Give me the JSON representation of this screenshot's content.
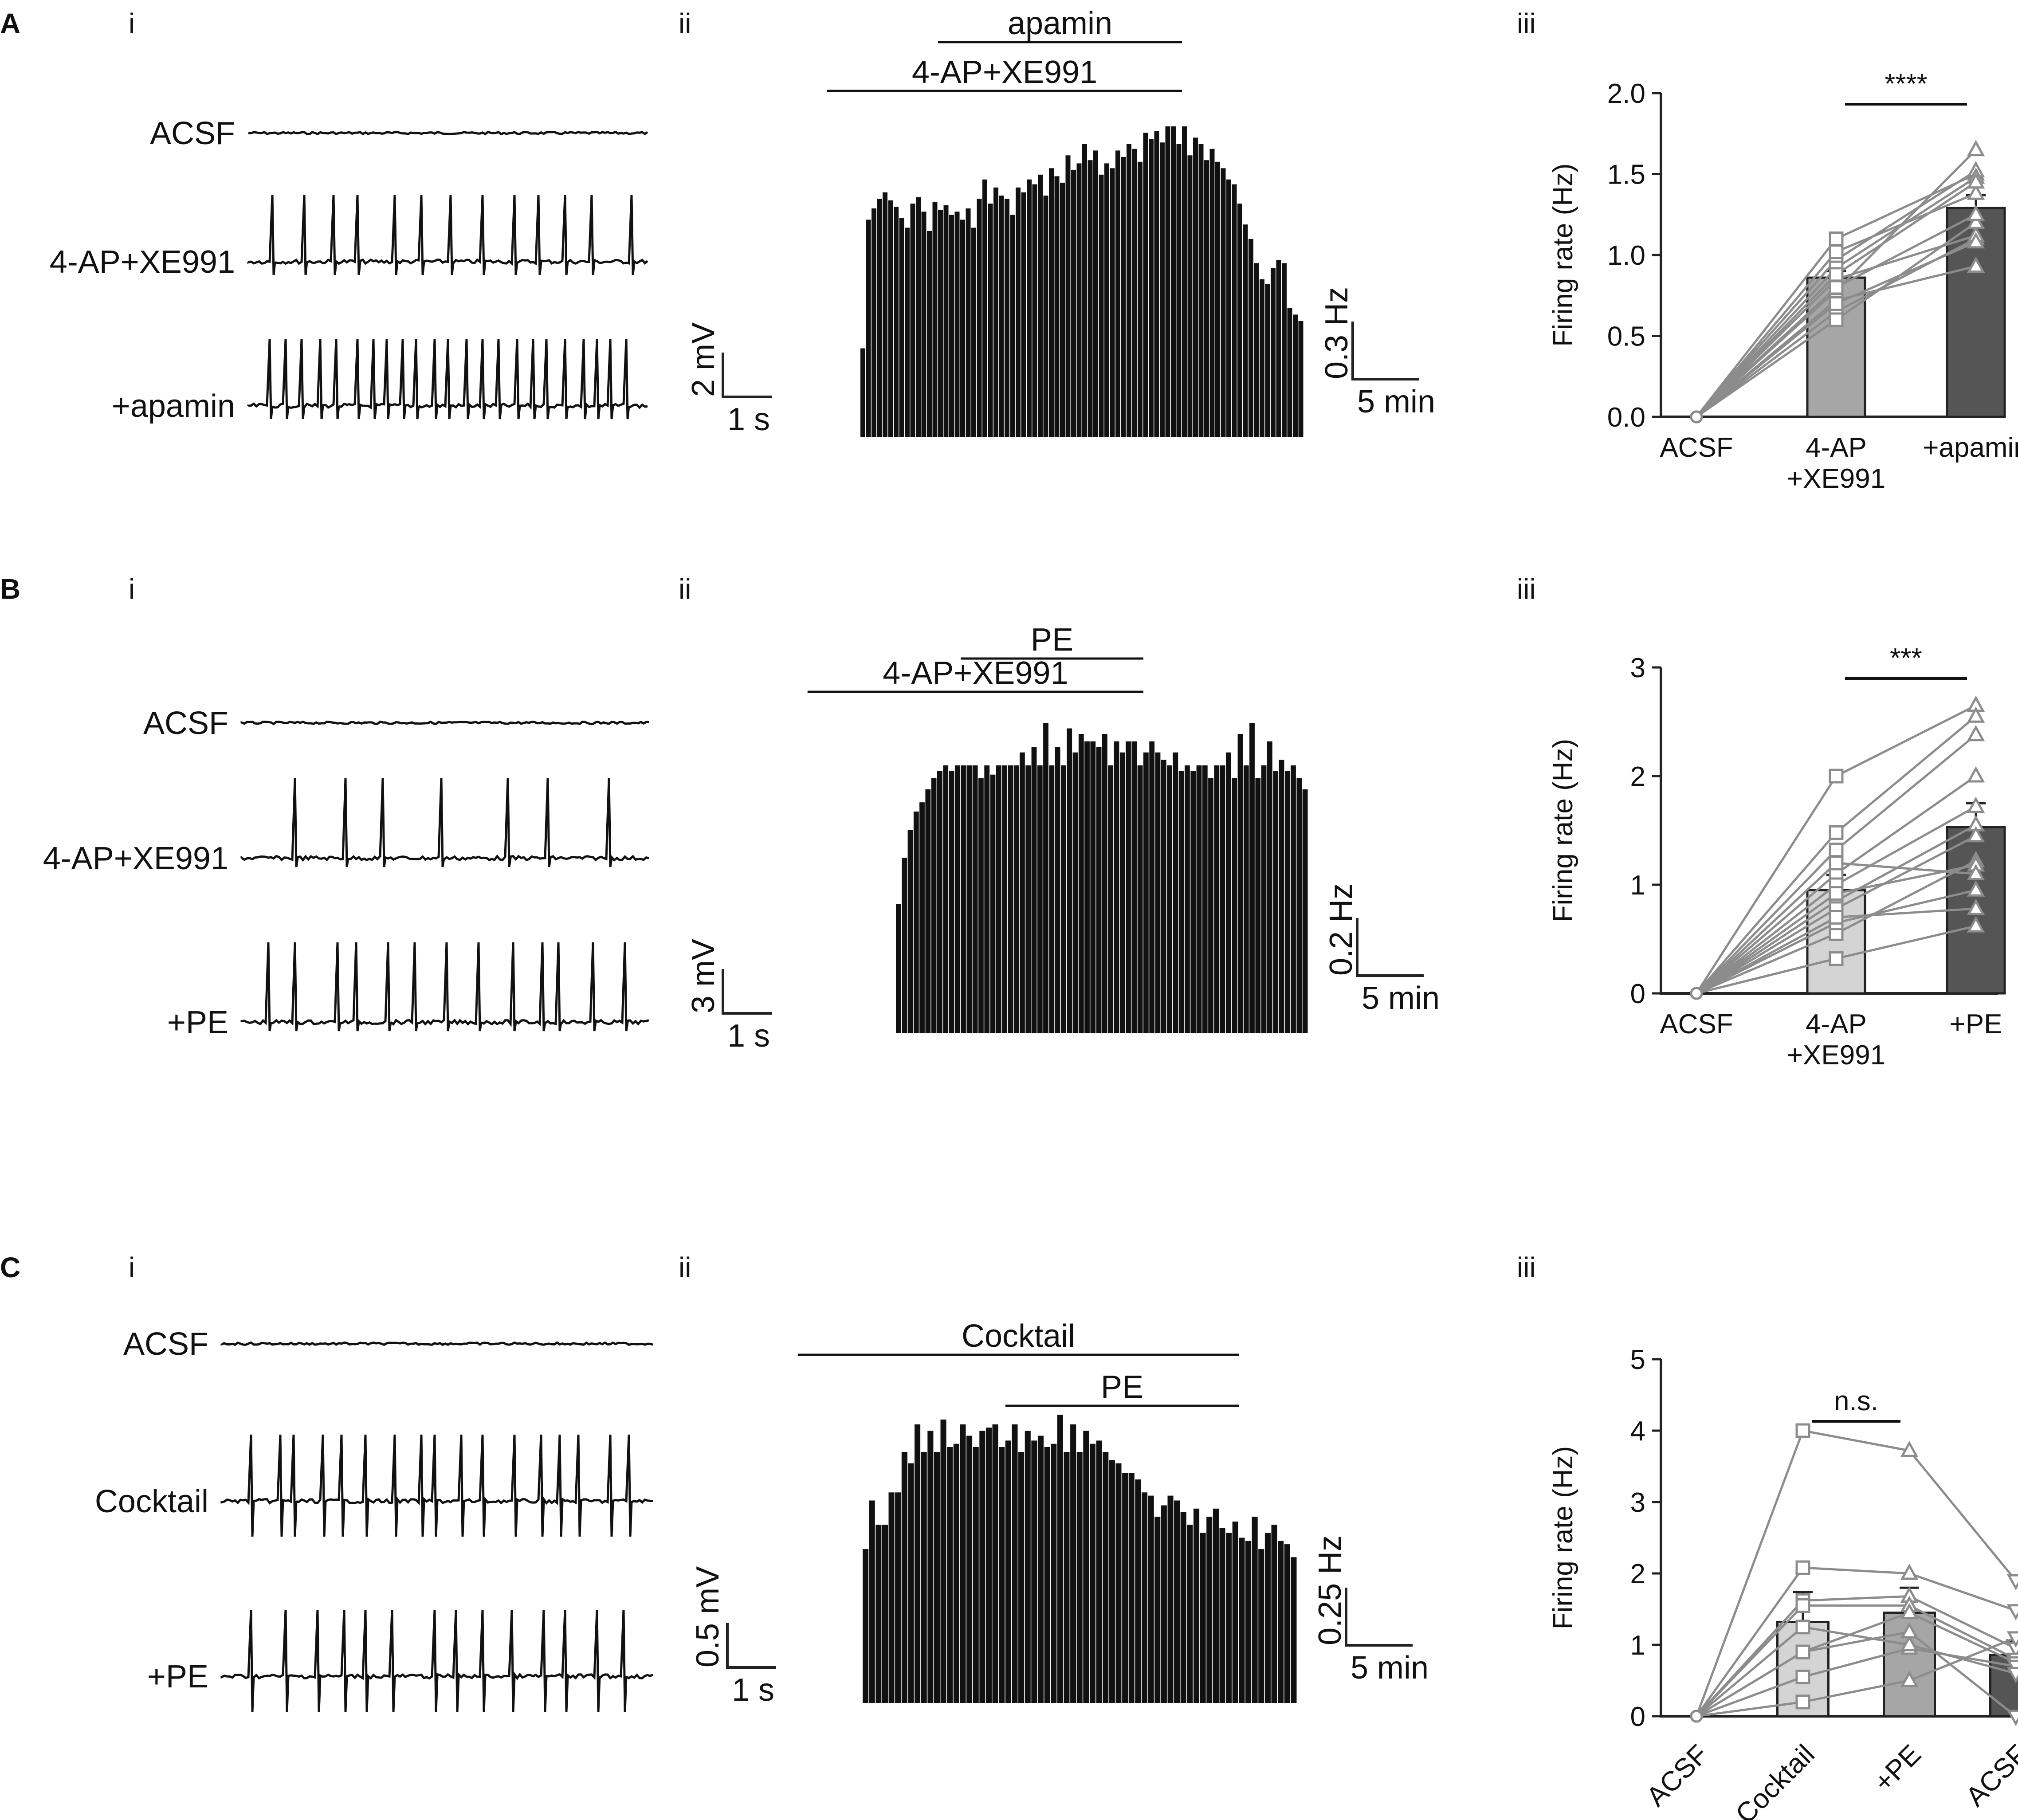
{
  "panels": [
    {
      "letter": "A",
      "subs": [
        "i",
        "ii",
        "iii"
      ],
      "traces": {
        "labels": [
          "ACSF",
          "4-AP+XE991",
          "+apamin"
        ],
        "spikes_per_10s": [
          0,
          13,
          23
        ],
        "scale_y": "2 mV",
        "scale_x": "1 s"
      },
      "histogram": {
        "bars": [
          0.55,
          1.35,
          1.42,
          1.48,
          1.52,
          1.47,
          1.43,
          1.36,
          1.3,
          1.45,
          1.49,
          1.4,
          1.28,
          1.46,
          1.41,
          1.44,
          1.38,
          1.4,
          1.35,
          1.42,
          1.3,
          1.48,
          1.6,
          1.45,
          1.55,
          1.5,
          1.48,
          1.38,
          1.55,
          1.52,
          1.6,
          1.57,
          1.63,
          1.5,
          1.67,
          1.62,
          1.58,
          1.75,
          1.66,
          1.7,
          1.82,
          1.72,
          1.78,
          1.63,
          1.7,
          1.67,
          1.78,
          1.74,
          1.82,
          1.79,
          1.71,
          1.89,
          1.85,
          1.9,
          1.83,
          1.93,
          1.93,
          1.82,
          1.93,
          1.75,
          1.86,
          1.82,
          1.72,
          1.79,
          1.71,
          1.67,
          1.6,
          1.57,
          1.45,
          1.32,
          1.23,
          1.08,
          0.98,
          0.95,
          1.05,
          1.1,
          1.08,
          0.8,
          0.76,
          0.72
        ],
        "drug_bars": [
          {
            "label": "4-AP+XE991",
            "start": -6,
            "end": 58
          },
          {
            "label": "apamin",
            "start": 14,
            "end": 58
          }
        ],
        "scale_y": "0.3 Hz",
        "scale_x": "5 min"
      },
      "stats": {
        "ylabel": "Firing rate (Hz)",
        "yticks": [
          "0.0",
          "0.5",
          "1.0",
          "1.5",
          "2.0"
        ],
        "ymax": 2.0,
        "categories": [
          "ACSF",
          "4-AP\n+XE991",
          "+apamin"
        ],
        "means": [
          0.0,
          0.86,
          1.29
        ],
        "errors": [
          0,
          0.04,
          0.08
        ],
        "markers": [
          "circle",
          "square",
          "triangle-up"
        ],
        "paired": [
          [
            0,
            0.78,
            1.65
          ],
          [
            0,
            1.1,
            1.5
          ],
          [
            0,
            0.97,
            1.52
          ],
          [
            0,
            0.65,
            1.1
          ],
          [
            0,
            0.85,
            1.12
          ],
          [
            0,
            0.92,
            1.48
          ],
          [
            0,
            0.6,
            1.2
          ],
          [
            0,
            0.8,
            1.25
          ],
          [
            0,
            0.72,
            0.93
          ],
          [
            0,
            1.02,
            1.38
          ],
          [
            0,
            0.88,
            1.45
          ],
          [
            0,
            0.7,
            1.08
          ]
        ],
        "sig": "****",
        "sig_between": [
          1,
          2
        ],
        "bar_colors": [
          "#ffffff",
          "#a6a6a6",
          "#555555"
        ]
      }
    },
    {
      "letter": "B",
      "subs": [
        "i",
        "ii",
        "iii"
      ],
      "traces": {
        "labels": [
          "ACSF",
          "4-AP+XE991",
          "+PE"
        ],
        "spikes_per_10s": [
          0,
          7,
          13
        ],
        "scale_y": "3 mV",
        "scale_x": "1 s"
      },
      "histogram": {
        "bars": [
          0.7,
          0.95,
          1.1,
          1.2,
          1.25,
          1.32,
          1.38,
          1.42,
          1.45,
          1.42,
          1.45,
          1.45,
          1.45,
          1.45,
          1.38,
          1.45,
          1.4,
          1.45,
          1.45,
          1.45,
          1.45,
          1.52,
          1.45,
          1.55,
          1.45,
          1.68,
          1.45,
          1.55,
          1.45,
          1.65,
          1.52,
          1.62,
          1.58,
          1.58,
          1.55,
          1.62,
          1.45,
          1.58,
          1.52,
          1.58,
          1.58,
          1.45,
          1.52,
          1.58,
          1.52,
          1.48,
          1.45,
          1.52,
          1.42,
          1.45,
          1.42,
          1.45,
          1.45,
          1.38,
          1.45,
          1.45,
          1.52,
          1.38,
          1.62,
          1.45,
          1.68,
          1.38,
          1.45,
          1.58,
          1.42,
          1.48,
          1.42,
          1.45,
          1.38,
          1.32
        ],
        "drug_bars": [
          {
            "label": "4-AP+XE991",
            "start": -15,
            "end": 42
          },
          {
            "label": "PE",
            "start": 11,
            "end": 42
          }
        ],
        "scale_y": "0.2 Hz",
        "scale_x": "5 min"
      },
      "stats": {
        "ylabel": "Firing rate (Hz)",
        "yticks": [
          "0",
          "1",
          "2",
          "3"
        ],
        "ymax": 3.0,
        "categories": [
          "ACSF",
          "4-AP\n+XE991",
          "+PE"
        ],
        "means": [
          0.0,
          0.95,
          1.53
        ],
        "errors": [
          0,
          0.14,
          0.22
        ],
        "markers": [
          "circle",
          "square",
          "triangle-up"
        ],
        "paired": [
          [
            0,
            2.0,
            2.65
          ],
          [
            0,
            1.48,
            2.55
          ],
          [
            0,
            1.32,
            2.38
          ],
          [
            0,
            1.1,
            2.0
          ],
          [
            0,
            1.0,
            1.72
          ],
          [
            0,
            0.85,
            1.55
          ],
          [
            0,
            0.78,
            1.45
          ],
          [
            0,
            0.55,
            1.22
          ],
          [
            0,
            0.92,
            1.18
          ],
          [
            0,
            0.65,
            0.95
          ],
          [
            0,
            0.7,
            0.78
          ],
          [
            0,
            0.32,
            0.62
          ],
          [
            0,
            1.2,
            1.1
          ]
        ],
        "sig": "***",
        "sig_between": [
          1,
          2
        ],
        "bar_colors": [
          "#ffffff",
          "#d4d4d4",
          "#555555"
        ]
      }
    },
    {
      "letter": "C",
      "subs": [
        "i",
        "ii",
        "iii"
      ],
      "traces": {
        "labels": [
          "ACSF",
          "Cocktail",
          "+PE"
        ],
        "spikes_per_10s": [
          0,
          17,
          14
        ],
        "scale_y": "0.5 mV",
        "scale_x": "1 s"
      },
      "histogram": {
        "bars": [
          0.95,
          1.25,
          1.1,
          1.1,
          1.3,
          1.3,
          1.55,
          1.48,
          1.72,
          1.55,
          1.68,
          1.55,
          1.75,
          1.58,
          1.6,
          1.72,
          1.65,
          1.58,
          1.68,
          1.7,
          1.72,
          1.58,
          1.62,
          1.72,
          1.55,
          1.68,
          1.62,
          1.65,
          1.58,
          1.6,
          1.78,
          1.55,
          1.72,
          1.55,
          1.68,
          1.6,
          1.62,
          1.55,
          1.5,
          1.48,
          1.42,
          1.42,
          1.38,
          1.3,
          1.28,
          1.15,
          1.22,
          1.28,
          1.25,
          1.18,
          1.1,
          1.2,
          1.05,
          1.15,
          1.2,
          1.08,
          1.05,
          1.12,
          1.02,
          1.0,
          1.15,
          0.95,
          1.05,
          1.1,
          1.0,
          0.98,
          0.9
        ],
        "drug_bars": [
          {
            "label": "Cocktail",
            "start": -10,
            "end": 58
          },
          {
            "label": "PE",
            "start": 22,
            "end": 58
          }
        ],
        "scale_y": "0.25 Hz",
        "scale_x": "5 min"
      },
      "stats": {
        "ylabel": "Firing rate (Hz)",
        "yticks": [
          "0",
          "1",
          "2",
          "3",
          "4",
          "5"
        ],
        "ymax": 5.0,
        "categories": [
          "ACSF",
          "Cocktail",
          "+PE",
          "ACSF"
        ],
        "means": [
          0.0,
          1.32,
          1.45,
          0.86
        ],
        "errors": [
          0,
          0.42,
          0.35,
          0.2
        ],
        "markers": [
          "circle",
          "square",
          "triangle-up",
          "triangle-down"
        ],
        "paired": [
          [
            0,
            4.0,
            3.72,
            1.9
          ],
          [
            0,
            2.08,
            2.0,
            1.48
          ],
          [
            0,
            1.62,
            1.68,
            0.95
          ],
          [
            0,
            1.55,
            1.55,
            0.8
          ],
          [
            0,
            0.9,
            1.45,
            0.75
          ],
          [
            0,
            0.55,
            0.95,
            0.7
          ],
          [
            0,
            0.2,
            0.5,
            1.1
          ],
          [
            0,
            1.25,
            1.0,
            0.6
          ],
          [
            0,
            0.9,
            1.18,
            0.0
          ]
        ],
        "sig": "n.s.",
        "sig_between": [
          1,
          2
        ],
        "bar_colors": [
          "#ffffff",
          "#d4d4d4",
          "#a6a6a6",
          "#555555"
        ]
      }
    }
  ]
}
